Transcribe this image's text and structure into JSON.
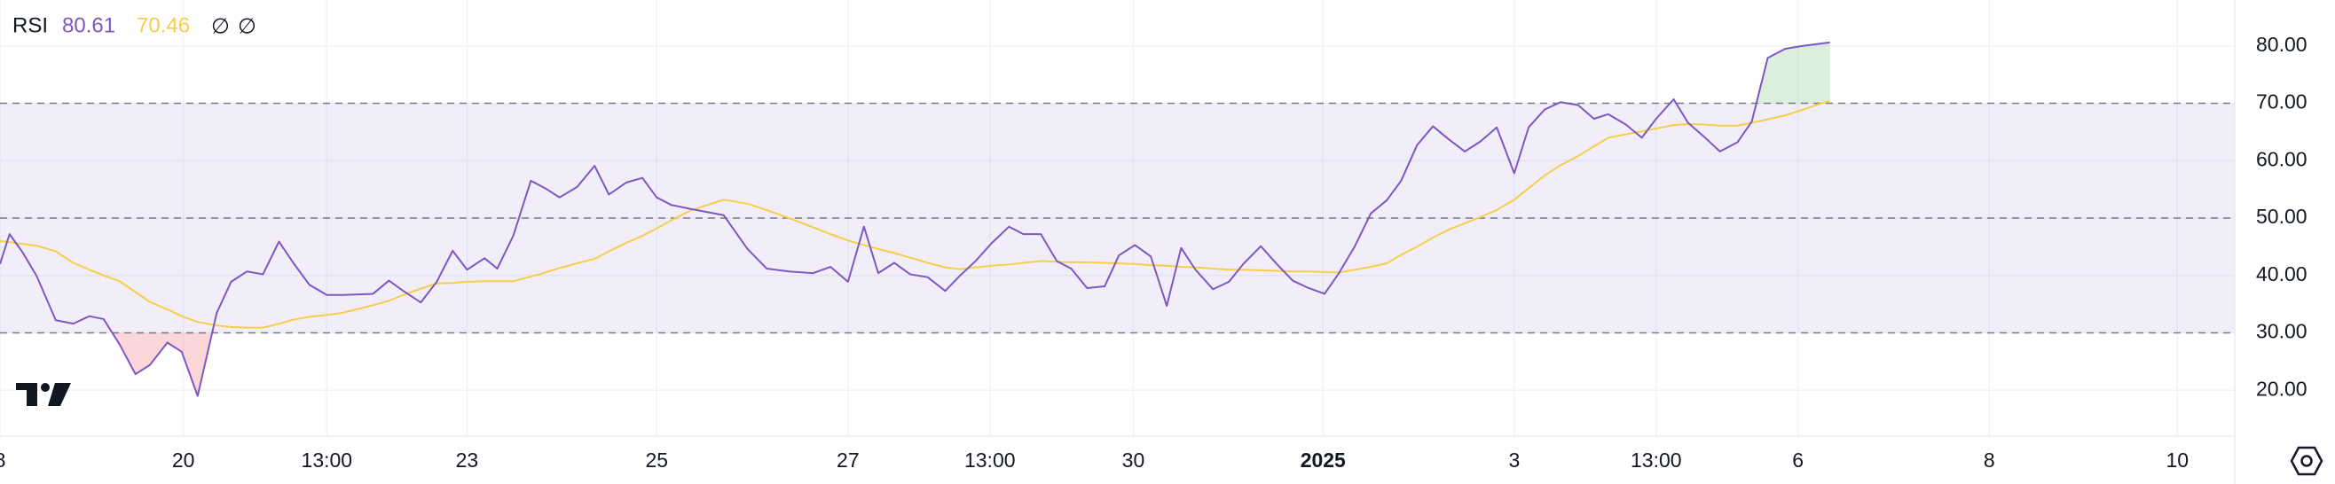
{
  "chart_data": {
    "type": "line",
    "header_icons": [
      "∅",
      "∅"
    ],
    "x": [
      0,
      0.6,
      1.4,
      2.3,
      3.5,
      4.6,
      5.6,
      6.5,
      7.5,
      8.5,
      9.4,
      10.5,
      11.4,
      12.4,
      13.6,
      14.5,
      15.5,
      16.5,
      17.5,
      18.4,
      19.4,
      20.5,
      21.5,
      23.4,
      24.4,
      25.3,
      26.4,
      27.4,
      28.4,
      29.3,
      30.4,
      31.2,
      32.2,
      33.3,
      34.2,
      35.1,
      36.2,
      37.3,
      38.2,
      39.3,
      40.3,
      41.2,
      42.1,
      43.3,
      45.4,
      46.9,
      48.1,
      49.5,
      51.0,
      52.1,
      53.2,
      54.2,
      55.1,
      56.1,
      57.1,
      58.2,
      59.3,
      60.2,
      61.2,
      62.2,
      63.3,
      64.2,
      65.3,
      66.3,
      67.2,
      68.2,
      69.3,
      70.2,
      71.2,
      72.2,
      73.2,
      74.1,
      75.0,
      76.1,
      77.1,
      78.0,
      79.1,
      80.1,
      81.1,
      82.1,
      83.1,
      84.0,
      85.0,
      86.0,
      87.0,
      87.9,
      88.9,
      89.9,
      90.9,
      91.9,
      92.9,
      93.9,
      95.0,
      95.9,
      96.9,
      97.9,
      99.0,
      100.0,
      100.9,
      102.0,
      103.0,
      103.9,
      105.0,
      105.9,
      106.9,
      107.9,
      109.0,
      109.9,
      110.9,
      112.0,
      113.1,
      114.8
    ],
    "series": [
      {
        "name": "RSI",
        "color": "#7e57c2",
        "values": [
          42.0,
          47.2,
          44.1,
          39.9,
          32.2,
          31.6,
          32.9,
          32.4,
          28.0,
          22.8,
          24.4,
          28.3,
          26.7,
          19.0,
          33.5,
          38.9,
          40.7,
          40.2,
          45.9,
          42.2,
          38.4,
          36.6,
          36.6,
          36.8,
          39.1,
          37.3,
          35.3,
          38.9,
          44.3,
          41.0,
          43.0,
          41.2,
          46.9,
          56.5,
          55.2,
          53.6,
          55.4,
          59.1,
          54.1,
          56.2,
          57.0,
          53.6,
          52.3,
          51.6,
          50.5,
          44.6,
          41.2,
          40.7,
          40.4,
          41.5,
          38.9,
          48.5,
          40.4,
          42.2,
          40.2,
          39.7,
          37.3,
          39.9,
          42.5,
          45.6,
          48.5,
          47.2,
          47.2,
          42.5,
          41.2,
          37.8,
          38.1,
          43.5,
          45.3,
          43.3,
          34.7,
          44.8,
          41.0,
          37.6,
          38.9,
          42.0,
          45.1,
          42.0,
          39.1,
          37.8,
          36.8,
          40.4,
          45.1,
          50.8,
          53.1,
          56.5,
          62.7,
          66.0,
          63.7,
          61.6,
          63.4,
          65.8,
          57.8,
          65.8,
          68.9,
          70.2,
          69.7,
          67.3,
          68.1,
          66.3,
          64.0,
          67.3,
          70.7,
          66.6,
          64.2,
          61.6,
          63.2,
          66.8,
          77.9,
          79.5,
          80.0,
          80.61
        ]
      },
      {
        "color": "#f5cf4a",
        "values": [
          46.0,
          45.8,
          45.5,
          45.2,
          44.2,
          42.2,
          41.0,
          40.0,
          39.0,
          37.1,
          35.4,
          34.1,
          32.9,
          31.9,
          31.3,
          31.0,
          30.9,
          30.9,
          31.6,
          32.3,
          32.8,
          33.1,
          33.5,
          34.8,
          35.6,
          36.6,
          37.7,
          38.6,
          38.7,
          38.9,
          39.0,
          39.0,
          39.0,
          39.8,
          40.5,
          41.3,
          42.1,
          42.9,
          44.2,
          45.7,
          46.9,
          48.2,
          49.6,
          51.3,
          53.2,
          52.5,
          51.4,
          50.0,
          48.4,
          47.2,
          46.1,
          45.3,
          44.6,
          43.9,
          43.1,
          42.2,
          41.4,
          41.1,
          41.4,
          41.7,
          41.9,
          42.2,
          42.5,
          42.4,
          42.3,
          42.3,
          42.2,
          42.1,
          42.0,
          41.8,
          41.7,
          41.5,
          41.4,
          41.2,
          41.0,
          41.0,
          40.9,
          40.8,
          40.7,
          40.7,
          40.6,
          40.5,
          41.0,
          41.5,
          42.1,
          43.6,
          45.0,
          46.6,
          48.0,
          49.1,
          50.2,
          51.4,
          53.2,
          55.2,
          57.4,
          59.2,
          60.8,
          62.5,
          64.0,
          64.6,
          65.1,
          65.6,
          66.2,
          66.4,
          66.3,
          66.1,
          66.1,
          66.6,
          67.2,
          67.9,
          68.9,
          70.46
        ]
      }
    ],
    "overbought": 70,
    "middle": 50,
    "oversold": 30,
    "band_color": "#7e57c2",
    "overbought_color": "#4caf50",
    "oversold_color": "#f23645",
    "xlim": [
      0,
      140.2
    ],
    "xticks": [
      {
        "value": 0,
        "label": "8"
      },
      {
        "value": 11.5,
        "label": "20"
      },
      {
        "value": 20.5,
        "label": "13:00"
      },
      {
        "value": 29.3,
        "label": "23"
      },
      {
        "value": 41.2,
        "label": "25"
      },
      {
        "value": 53.2,
        "label": "27"
      },
      {
        "value": 62.1,
        "label": "13:00"
      },
      {
        "value": 71.1,
        "label": "30"
      },
      {
        "value": 83,
        "label": "2025"
      },
      {
        "value": 95,
        "label": "3"
      },
      {
        "value": 103.9,
        "label": "13:00"
      },
      {
        "value": 112.8,
        "label": "6"
      },
      {
        "value": 124.8,
        "label": "8"
      },
      {
        "value": 136.6,
        "label": "10"
      }
    ],
    "ylim": [
      12,
      88
    ],
    "yticks": [
      {
        "value": 20,
        "label": "20.00"
      },
      {
        "value": 30,
        "label": "30.00"
      },
      {
        "value": 40,
        "label": "40.00"
      },
      {
        "value": 50,
        "label": "50.00"
      },
      {
        "value": 60,
        "label": "60.00"
      },
      {
        "value": 70,
        "label": "70.00"
      },
      {
        "value": 80,
        "label": "80.00"
      }
    ],
    "grid": true
  }
}
